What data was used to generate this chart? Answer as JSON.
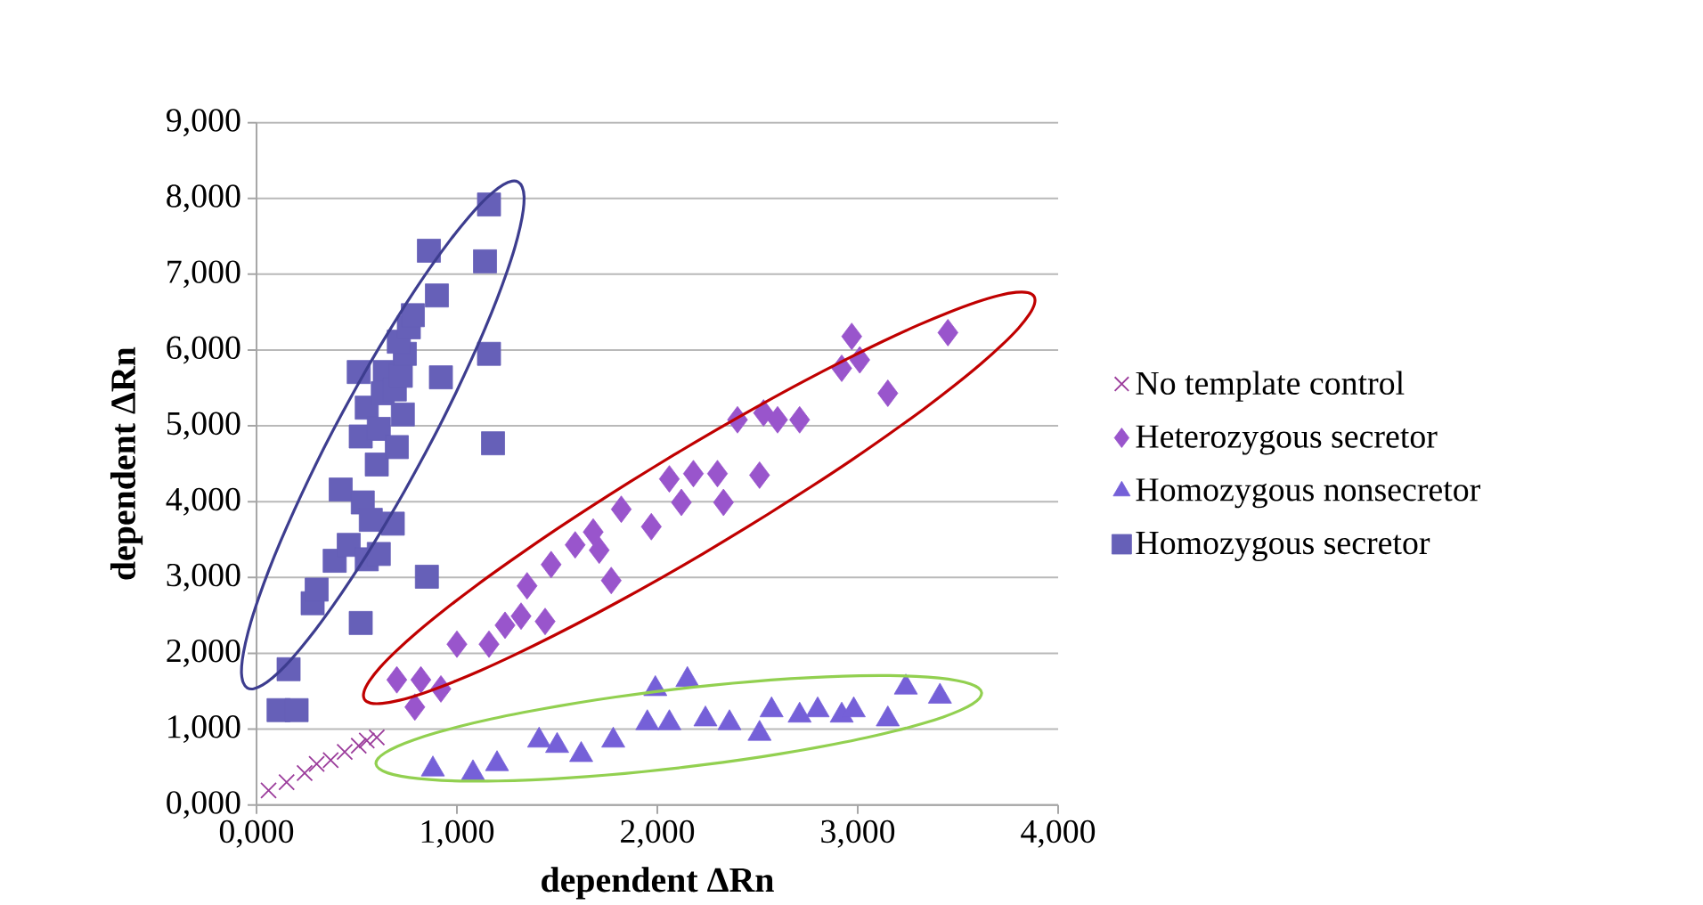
{
  "chart_data": {
    "type": "scatter",
    "xlabel": "dependent ΔRn",
    "ylabel": "dependent ΔRn",
    "xlim": [
      0,
      4
    ],
    "ylim": [
      0,
      9
    ],
    "xticks": [
      {
        "value": 0,
        "label": "0,000"
      },
      {
        "value": 1,
        "label": "1,000"
      },
      {
        "value": 2,
        "label": "2,000"
      },
      {
        "value": 3,
        "label": "3,000"
      },
      {
        "value": 4,
        "label": "4,000"
      }
    ],
    "yticks": [
      {
        "value": 0,
        "label": "0,000"
      },
      {
        "value": 1,
        "label": "1,000"
      },
      {
        "value": 2,
        "label": "2,000"
      },
      {
        "value": 3,
        "label": "3,000"
      },
      {
        "value": 4,
        "label": "4,000"
      },
      {
        "value": 5,
        "label": "5,000"
      },
      {
        "value": 6,
        "label": "6,000"
      },
      {
        "value": 7,
        "label": "7,000"
      },
      {
        "value": 8,
        "label": "8,000"
      },
      {
        "value": 9,
        "label": "9,000"
      }
    ],
    "grid": "y",
    "legend": "right",
    "series": [
      {
        "name": "No template control",
        "color": "#9b3c9b",
        "marker": "cross",
        "x": [
          0.06,
          0.15,
          0.24,
          0.3,
          0.37,
          0.44,
          0.51,
          0.55,
          0.6
        ],
        "values": [
          0.19,
          0.3,
          0.42,
          0.54,
          0.59,
          0.7,
          0.78,
          0.85,
          0.89
        ]
      },
      {
        "name": "Heterozygous secretor",
        "color": "#9955cc",
        "marker": "diamond",
        "x": [
          0.7,
          0.82,
          0.92,
          0.79,
          1.0,
          1.16,
          1.24,
          1.32,
          1.44,
          1.35,
          1.47,
          1.59,
          1.68,
          1.77,
          1.71,
          1.82,
          1.97,
          2.06,
          2.12,
          2.18,
          2.3,
          2.33,
          2.51,
          2.4,
          2.53,
          2.6,
          2.71,
          2.92,
          2.97,
          3.01,
          3.15,
          3.45
        ],
        "values": [
          1.65,
          1.65,
          1.53,
          1.29,
          2.12,
          2.12,
          2.37,
          2.49,
          2.42,
          2.89,
          3.17,
          3.43,
          3.6,
          2.96,
          3.36,
          3.9,
          3.67,
          4.3,
          3.99,
          4.37,
          4.37,
          3.99,
          4.35,
          5.08,
          5.17,
          5.08,
          5.08,
          5.76,
          6.18,
          5.87,
          5.43,
          6.23
        ]
      },
      {
        "name": "Homozygous nonsecretor",
        "color": "#7560d8",
        "marker": "triangle",
        "x": [
          0.88,
          1.08,
          1.2,
          1.41,
          1.5,
          1.62,
          1.78,
          1.95,
          1.99,
          2.15,
          2.06,
          2.24,
          2.36,
          2.51,
          2.57,
          2.71,
          2.8,
          2.92,
          2.98,
          3.15,
          3.24,
          3.41
        ],
        "values": [
          0.47,
          0.42,
          0.54,
          0.85,
          0.78,
          0.66,
          0.85,
          1.08,
          1.53,
          1.65,
          1.08,
          1.13,
          1.08,
          0.94,
          1.25,
          1.18,
          1.25,
          1.18,
          1.25,
          1.13,
          1.55,
          1.43
        ]
      },
      {
        "name": "Homozygous secretor",
        "color": "#6660b8",
        "marker": "square",
        "x": [
          0.11,
          0.2,
          0.16,
          0.28,
          0.3,
          0.39,
          0.46,
          0.42,
          0.52,
          0.55,
          0.51,
          0.64,
          0.52,
          0.53,
          0.57,
          0.6,
          0.61,
          0.7,
          0.63,
          0.69,
          0.73,
          0.72,
          0.74,
          0.71,
          0.76,
          0.78,
          0.86,
          0.9,
          0.92,
          0.85,
          1.16,
          1.14,
          1.16,
          1.18,
          0.55,
          0.68,
          0.61
        ],
        "values": [
          1.25,
          1.25,
          1.79,
          2.66,
          2.84,
          3.22,
          3.43,
          4.16,
          4.86,
          5.24,
          5.71,
          5.71,
          2.4,
          3.99,
          3.76,
          4.49,
          4.96,
          4.72,
          5.43,
          5.48,
          5.15,
          5.66,
          5.95,
          6.11,
          6.3,
          6.46,
          7.31,
          6.72,
          5.64,
          3.01,
          7.92,
          7.17,
          5.95,
          4.77,
          3.24,
          3.71,
          3.31
        ]
      }
    ]
  }
}
